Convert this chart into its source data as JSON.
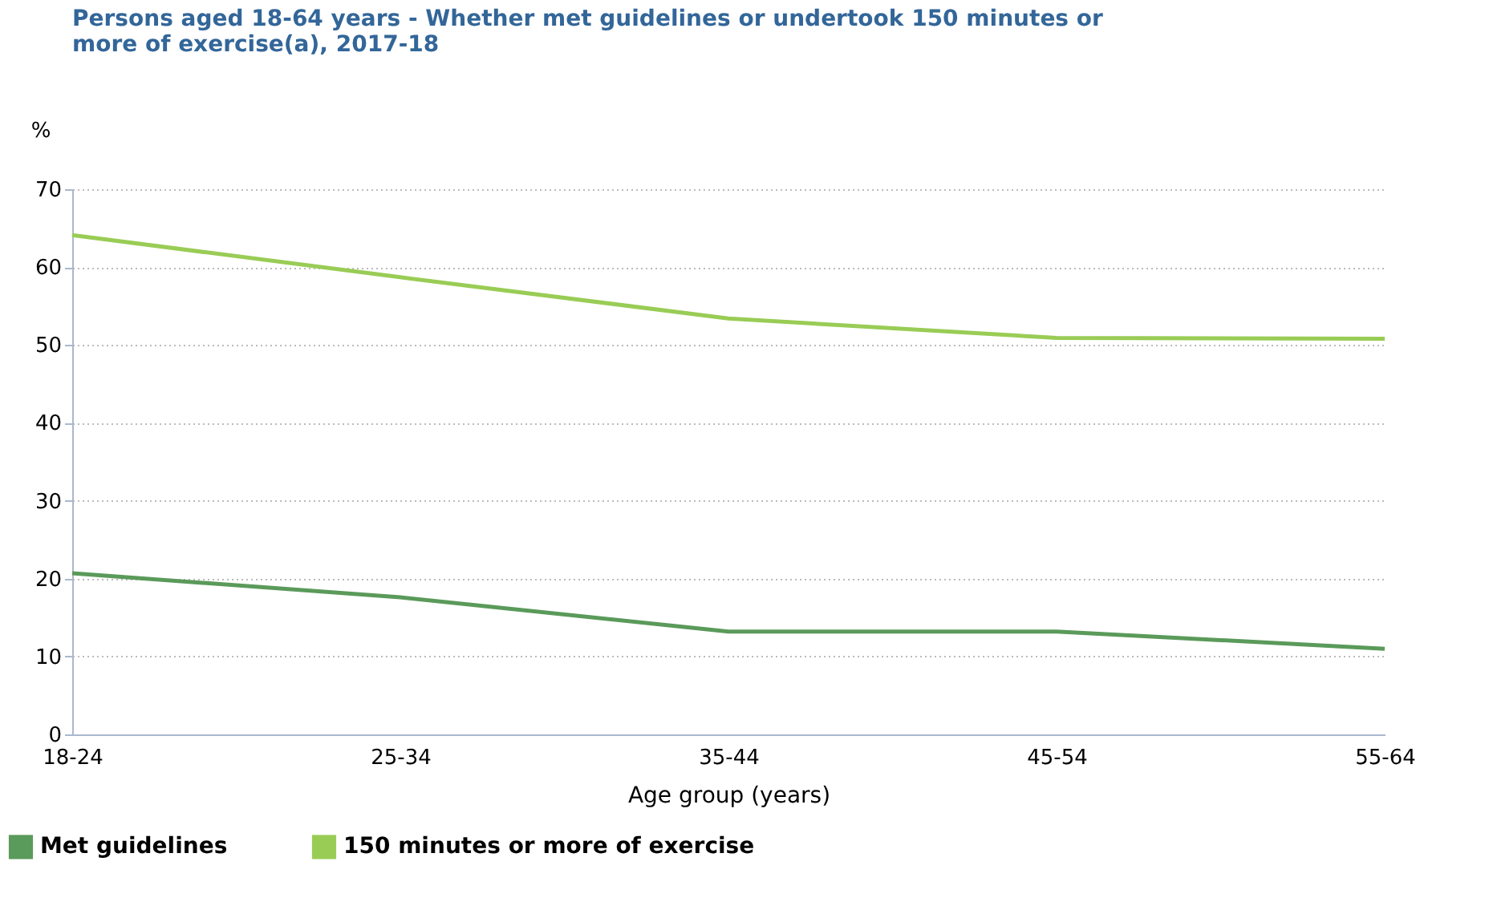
{
  "chart_data": {
    "type": "line",
    "title": "Persons aged 18-64 years - Whether met guidelines or undertook 150 minutes or more of exercise(a), 2017-18",
    "xlabel": "Age group (years)",
    "ylabel": "%",
    "categories": [
      "18-24",
      "25-34",
      "35-44",
      "45-54",
      "55-64"
    ],
    "series": [
      {
        "name": "Met guidelines",
        "color": "#5a9a5a",
        "values": [
          20.7,
          17.6,
          13.2,
          13.2,
          11.0
        ]
      },
      {
        "name": "150 minutes or more of exercise",
        "color": "#99cc55",
        "values": [
          64.1,
          58.7,
          53.4,
          50.9,
          50.8
        ]
      }
    ],
    "ylim": [
      0,
      70
    ],
    "yticks": [
      0,
      10,
      20,
      30,
      40,
      50,
      60,
      70
    ],
    "grid": "y",
    "legend": "bottom left",
    "marker": "none",
    "line_style": "solid"
  }
}
